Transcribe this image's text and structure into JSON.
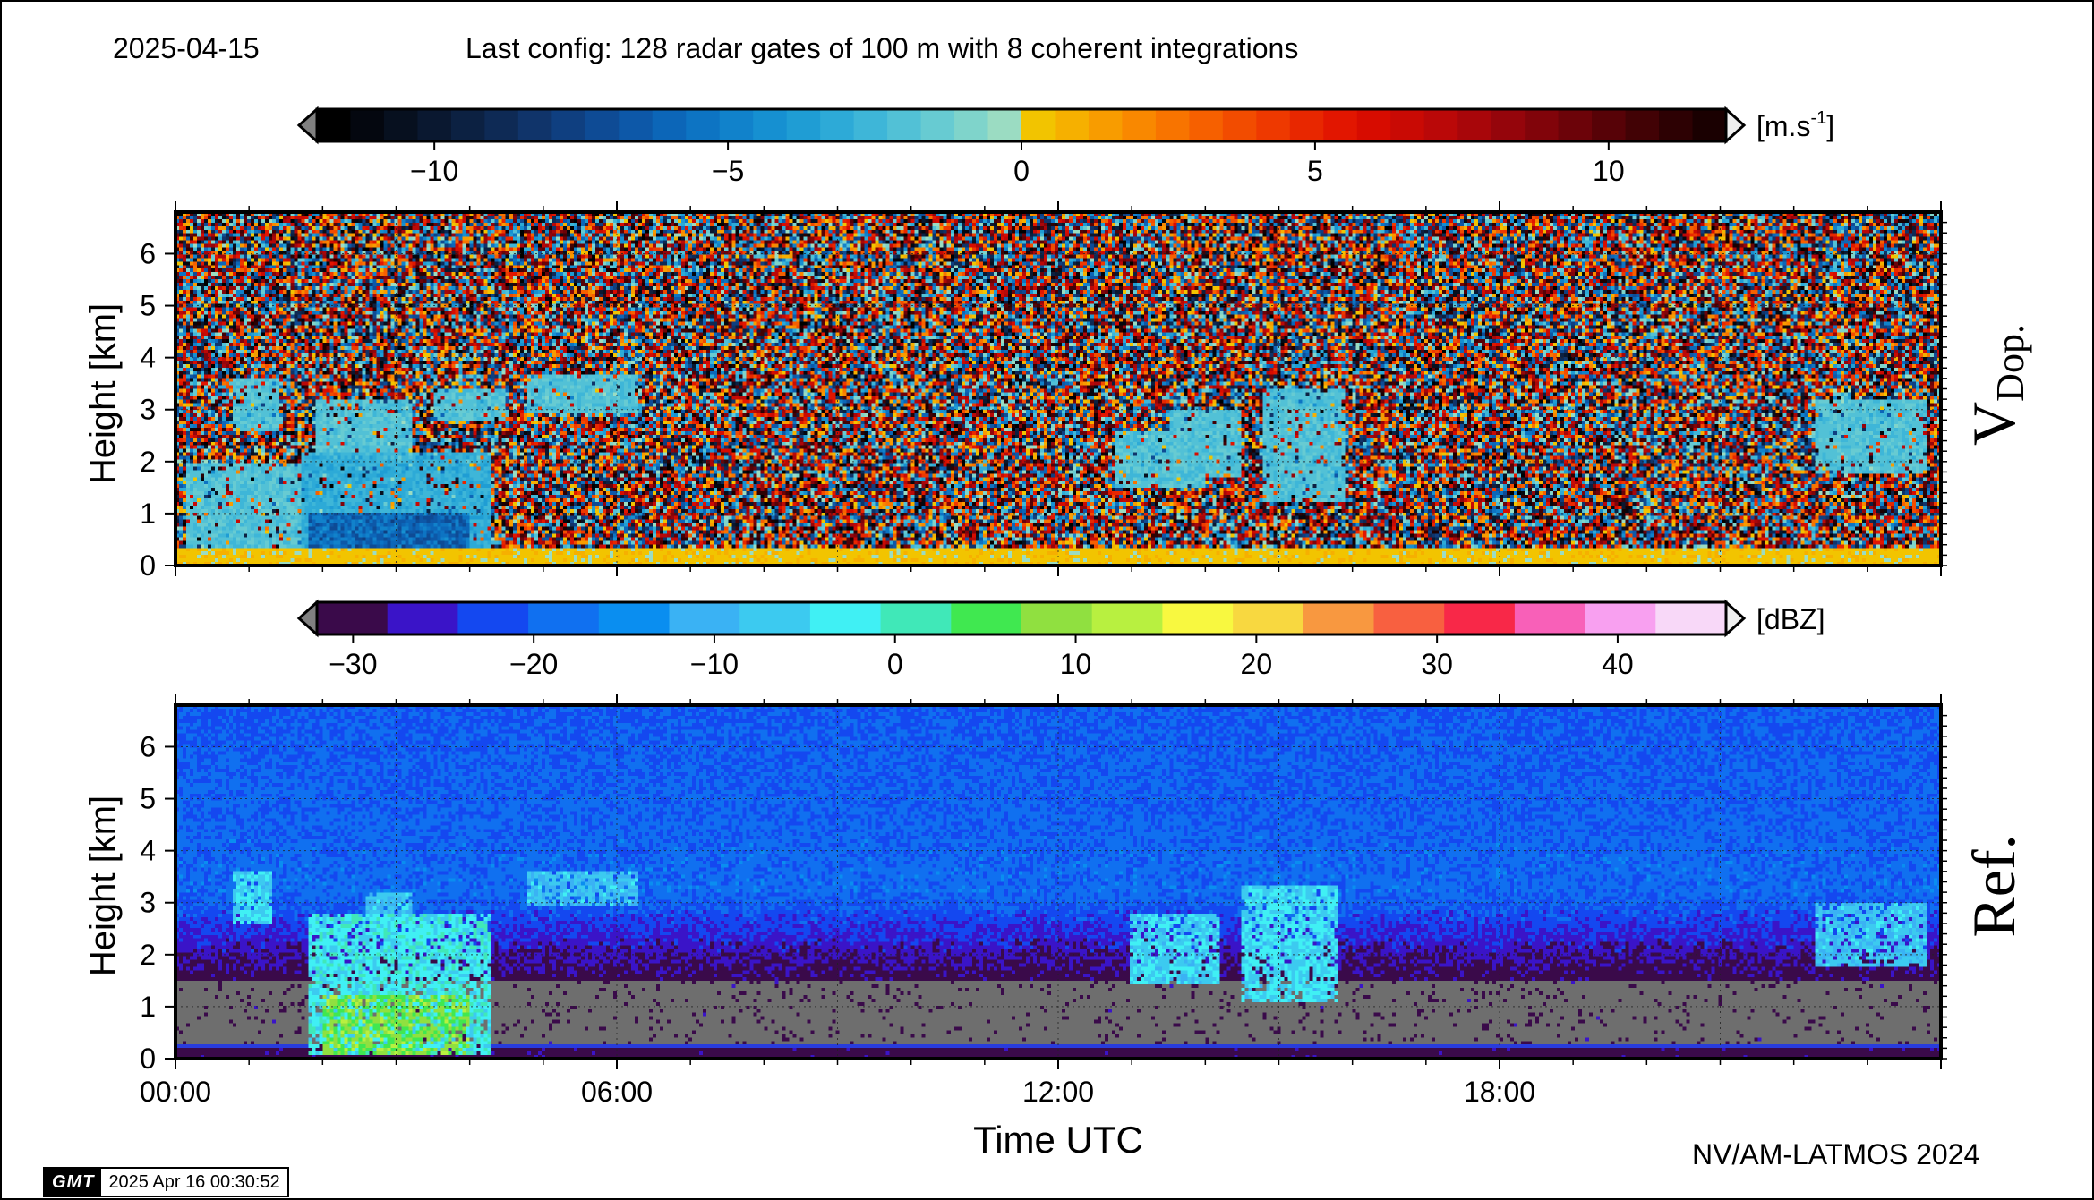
{
  "header": {
    "date": "2025-04-15",
    "config": "Last config: 128 radar gates of 100 m with 8 coherent integrations"
  },
  "footer": {
    "credit": "NV/AM-LATMOS 2024",
    "gmt_logo": "GMT",
    "timestamp": "2025 Apr 16 00:30:52"
  },
  "chart_data": [
    {
      "type": "heatmap",
      "panel_label": "VDop.",
      "panel_label_main": "V",
      "panel_label_sub": "Dop.",
      "ylabel": "Height [km]",
      "yticks": [
        "0",
        "1",
        "2",
        "3",
        "4",
        "5",
        "6"
      ],
      "ylim": [
        0,
        6.8
      ],
      "xlim": [
        0,
        24
      ],
      "grid": true,
      "colorbar": {
        "unit_base": "[m.s",
        "unit_exp": "-1",
        "unit_close": "]",
        "range": [
          -12,
          12
        ],
        "ticks": [
          "−10",
          "−5",
          "0",
          "5",
          "10"
        ],
        "tick_values": [
          -10,
          -5,
          0,
          5,
          10
        ],
        "colors": [
          "#000000",
          "#04070f",
          "#07101f",
          "#0a1830",
          "#0c2142",
          "#0e2a55",
          "#10346a",
          "#0f3f80",
          "#0e4b95",
          "#0d58a8",
          "#0c66b8",
          "#0d74c3",
          "#1182cb",
          "#1690d1",
          "#1f9dd4",
          "#2daad7",
          "#3eb6d8",
          "#52c1d6",
          "#67cbd2",
          "#7fd4cb",
          "#9bdcc2",
          "#f2c400",
          "#f6b000",
          "#f89c00",
          "#f98800",
          "#f87400",
          "#f66000",
          "#f24c00",
          "#ee3900",
          "#e82700",
          "#e21600",
          "#d70c00",
          "#c90a04",
          "#ba0808",
          "#a8060a",
          "#95050b",
          "#81040a",
          "#6c0309",
          "#570207",
          "#420205",
          "#2d0103",
          "#1a0001"
        ]
      },
      "cloud_regions": [
        {
          "x0": 0.15,
          "x1": 1.7,
          "y0": 0.1,
          "y1": 2.0,
          "v": -2
        },
        {
          "x0": 0.8,
          "x1": 1.4,
          "y0": 2.6,
          "y1": 3.6,
          "v": -2
        },
        {
          "x0": 1.7,
          "x1": 4.3,
          "y0": 0.1,
          "y1": 2.2,
          "v": -3
        },
        {
          "x0": 1.9,
          "x1": 3.2,
          "y0": 2.0,
          "y1": 3.2,
          "v": -2
        },
        {
          "x0": 3.5,
          "x1": 4.5,
          "y0": 2.8,
          "y1": 3.4,
          "v": -2
        },
        {
          "x0": 4.8,
          "x1": 6.3,
          "y0": 2.9,
          "y1": 3.7,
          "v": -2
        },
        {
          "x0": 12.8,
          "x1": 14.0,
          "y0": 1.5,
          "y1": 2.6,
          "v": -2
        },
        {
          "x0": 13.5,
          "x1": 14.5,
          "y0": 1.7,
          "y1": 3.0,
          "v": -2
        },
        {
          "x0": 14.8,
          "x1": 15.9,
          "y0": 1.2,
          "y1": 3.4,
          "v": -2
        },
        {
          "x0": 22.3,
          "x1": 23.8,
          "y0": 1.8,
          "y1": 3.2,
          "v": -2
        }
      ],
      "deep_regions": [
        {
          "x0": 1.8,
          "x1": 4.0,
          "y0": 0.1,
          "y1": 1.0,
          "v": -6
        }
      ],
      "surface_band": {
        "y0": 0.0,
        "y1": 0.35,
        "v": 0.3
      }
    },
    {
      "type": "heatmap",
      "panel_label": "Ref.",
      "ylabel": "Height [km]",
      "xlabel": "Time UTC",
      "yticks": [
        "0",
        "1",
        "2",
        "3",
        "4",
        "5",
        "6"
      ],
      "xticks": [
        "00:00",
        "06:00",
        "12:00",
        "18:00"
      ],
      "xtick_values": [
        0,
        6,
        12,
        18
      ],
      "ylim": [
        0,
        6.8
      ],
      "xlim": [
        0,
        24
      ],
      "grid": true,
      "colorbar": {
        "unit": "[dBZ]",
        "range": [
          -32,
          46
        ],
        "ticks": [
          "−30",
          "−20",
          "−10",
          "0",
          "10",
          "20",
          "30",
          "40"
        ],
        "tick_values": [
          -30,
          -20,
          -10,
          0,
          10,
          20,
          30,
          40
        ],
        "colors": [
          "#3a0a4a",
          "#3a14c8",
          "#1448f0",
          "#1070f0",
          "#0a8ef0",
          "#3ab2f4",
          "#3ccaf0",
          "#40f0f4",
          "#40e8b8",
          "#40e850",
          "#90e040",
          "#b8f040",
          "#f8f840",
          "#f8d840",
          "#f89840",
          "#f86040",
          "#f82848",
          "#f860b8",
          "#f8a0f0",
          "#f8d8f8"
        ]
      },
      "cloud_regions": [
        {
          "x0": 0.8,
          "x1": 1.3,
          "y0": 2.6,
          "y1": 3.6,
          "dbz": -5
        },
        {
          "x0": 1.8,
          "x1": 4.3,
          "y0": 0.1,
          "y1": 2.8,
          "dbz": -3
        },
        {
          "x0": 2.6,
          "x1": 3.2,
          "y0": 2.6,
          "y1": 3.2,
          "dbz": -8
        },
        {
          "x0": 4.8,
          "x1": 6.3,
          "y0": 2.9,
          "y1": 3.6,
          "dbz": -8
        },
        {
          "x0": 13.0,
          "x1": 14.2,
          "y0": 1.4,
          "y1": 2.8,
          "dbz": -6
        },
        {
          "x0": 14.5,
          "x1": 15.8,
          "y0": 1.1,
          "y1": 3.3,
          "dbz": -5
        },
        {
          "x0": 22.3,
          "x1": 23.8,
          "y0": 1.8,
          "y1": 3.0,
          "dbz": -8
        }
      ],
      "core_regions": [
        {
          "x0": 2.0,
          "x1": 4.0,
          "y0": 0.1,
          "y1": 1.2,
          "dbz": 8
        }
      ],
      "gray_band": {
        "y0": 0.25,
        "y1": 1.5
      },
      "surface_line": {
        "y": 0.25
      }
    }
  ]
}
